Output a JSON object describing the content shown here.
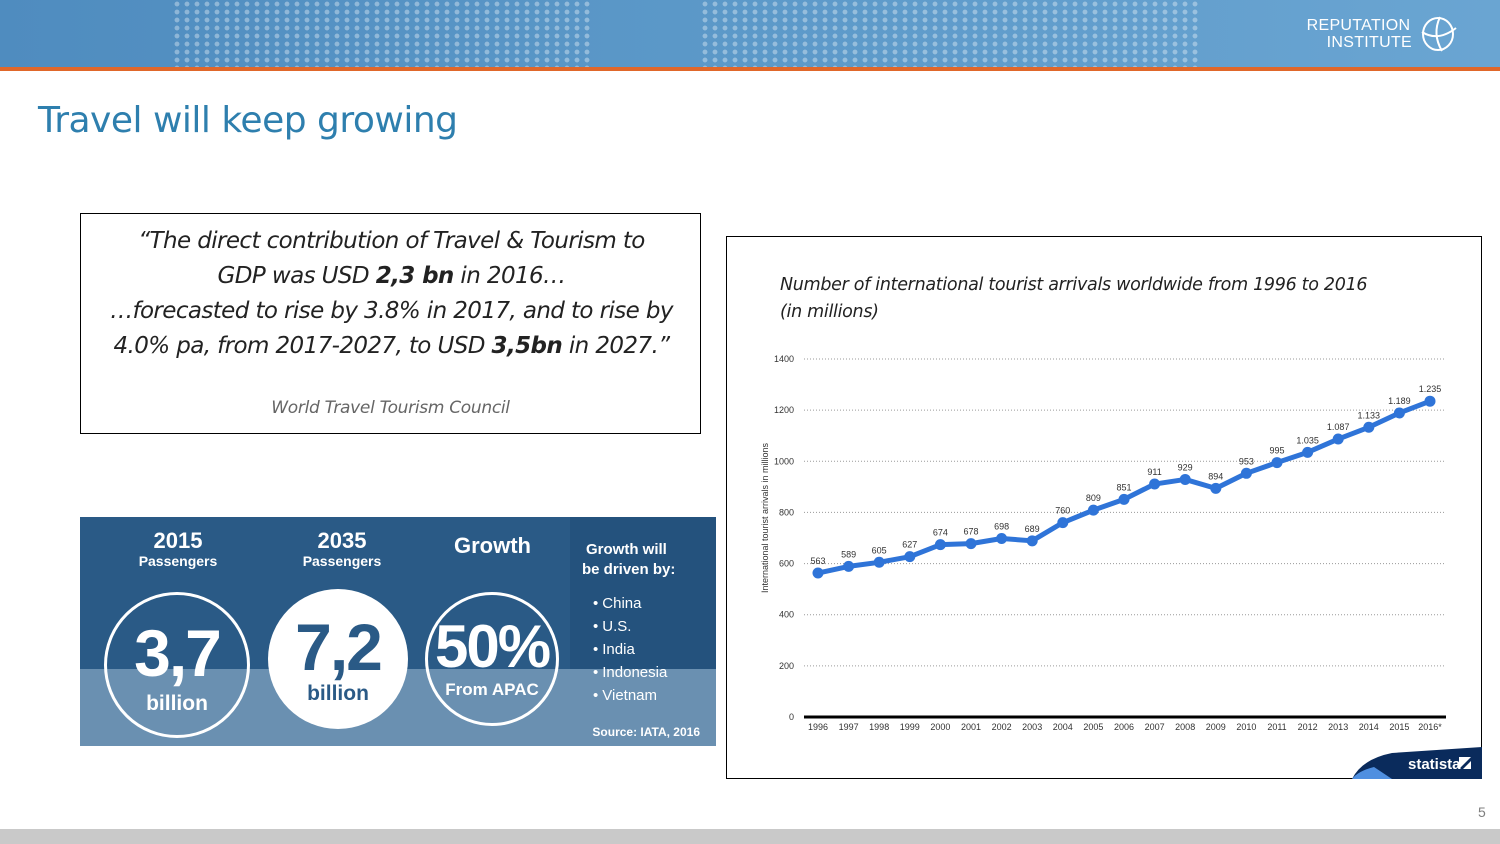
{
  "brand": {
    "logo_line1": "Reputation",
    "logo_line2": "Institute",
    "colors": {
      "accent_orange": "#e0672a",
      "title_blue": "#2e7fae",
      "header_blue": "#5b98c8",
      "chart_line": "#2f74d8"
    }
  },
  "slide": {
    "title": "Travel will keep growing",
    "page_number": "5"
  },
  "quote": {
    "line1": "“The direct contribution of Travel & Tourism to",
    "line2_pre": "GDP was USD ",
    "line2_bold": "2,3 bn",
    "line2_post": " in 2016…",
    "line3": "…forecasted to rise by 3.8% in 2017, and to rise by",
    "line4_pre": "4.0% pa, from 2017-2027, to USD ",
    "line4_bold": "3,5bn",
    "line4_post": " in 2027.”",
    "source": "World Travel Tourism Council"
  },
  "iata": {
    "col1": {
      "year": "2015",
      "label": "Passengers",
      "value": "3,7",
      "unit": "billion"
    },
    "col2": {
      "year": "2035",
      "label": "Passengers",
      "value": "7,2",
      "unit": "billion"
    },
    "col3": {
      "title": "Growth",
      "value": "50%",
      "unit": "From APAC"
    },
    "drivers_title_line1": "Growth will",
    "drivers_title_line2": "be driven by:",
    "drivers": [
      "China",
      "U.S.",
      "India",
      "Indonesia",
      "Vietnam"
    ],
    "source": "Source: IATA, 2016"
  },
  "chart_data": {
    "type": "line",
    "title_line1": "Number of international tourist arrivals worldwide from 1996 to 2016",
    "title_line2": "(in millions)",
    "ylabel": "International tourist arrivals in millions",
    "xlabel": "",
    "x": [
      "1996",
      "1997",
      "1998",
      "1999",
      "2000",
      "2001",
      "2002",
      "2003",
      "2004",
      "2005",
      "2006",
      "2007",
      "2008",
      "2009",
      "2010",
      "2011",
      "2012",
      "2013",
      "2014",
      "2015",
      "2016*"
    ],
    "values": [
      563,
      589,
      605,
      627,
      674,
      678,
      698,
      689,
      760,
      809,
      851,
      911,
      929,
      894,
      953,
      995,
      1035,
      1087,
      1133,
      1189,
      1235
    ],
    "value_labels": [
      "563",
      "589",
      "605",
      "627",
      "674",
      "678",
      "698",
      "689",
      "760",
      "809",
      "851",
      "911",
      "929",
      "894",
      "953",
      "995",
      "1.035",
      "1.087",
      "1.133",
      "1.189",
      "1.235"
    ],
    "ylim": [
      0,
      1400
    ],
    "yticks": [
      "0",
      "200",
      "400",
      "600",
      "800",
      "1000",
      "1200",
      "1400"
    ],
    "grid": true,
    "brand_label": "statista"
  }
}
